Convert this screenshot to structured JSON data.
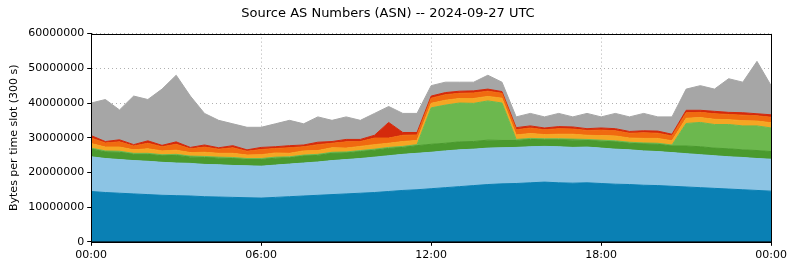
{
  "chart_data": {
    "type": "area",
    "title": "Source AS Numbers (ASN) -- 2024-09-27 UTC",
    "y_label": "Bytes per time slot (300 s)",
    "stacked": true,
    "grid": true,
    "xlim": [
      0,
      24
    ],
    "xticks": [
      {
        "value": 0,
        "label": "00:00"
      },
      {
        "value": 6,
        "label": "06:00"
      },
      {
        "value": 12,
        "label": "12:00"
      },
      {
        "value": 18,
        "label": "18:00"
      },
      {
        "value": 24,
        "label": "00:00"
      }
    ],
    "ylim": [
      0,
      60000000
    ],
    "yticks": [
      0,
      10000000,
      20000000,
      30000000,
      40000000,
      50000000,
      60000000
    ],
    "x": [
      0,
      0.5,
      1,
      1.5,
      2,
      2.5,
      3,
      3.5,
      4,
      4.5,
      5,
      5.5,
      6,
      6.5,
      7,
      7.5,
      8,
      8.5,
      9,
      9.5,
      10,
      10.5,
      11,
      11.5,
      12,
      12.5,
      13,
      13.5,
      14,
      14.5,
      15,
      15.5,
      16,
      16.5,
      17,
      17.5,
      18,
      18.5,
      19,
      19.5,
      20,
      20.5,
      21,
      21.5,
      22,
      22.5,
      23,
      23.5,
      24
    ],
    "series": [
      {
        "color": "#0a80b4",
        "values": [
          14500000,
          14200000,
          14000000,
          13800000,
          13600000,
          13400000,
          13300000,
          13200000,
          13000000,
          12900000,
          12800000,
          12700000,
          12600000,
          12800000,
          13000000,
          13200000,
          13400000,
          13600000,
          13800000,
          14000000,
          14200000,
          14500000,
          14800000,
          15000000,
          15300000,
          15600000,
          15900000,
          16200000,
          16500000,
          16700000,
          16800000,
          17000000,
          17200000,
          17000000,
          16900000,
          17000000,
          16800000,
          16600000,
          16500000,
          16300000,
          16200000,
          16000000,
          15800000,
          15600000,
          15400000,
          15200000,
          15000000,
          14800000,
          14600000
        ]
      },
      {
        "color": "#8cc4e4",
        "values": [
          10000000,
          9800000,
          9700000,
          9600000,
          9600000,
          9500000,
          9400000,
          9400000,
          9300000,
          9300000,
          9200000,
          9200000,
          9200000,
          9300000,
          9400000,
          9500000,
          9600000,
          9800000,
          9900000,
          10000000,
          10200000,
          10300000,
          10400000,
          10500000,
          10500000,
          10600000,
          10600000,
          10500000,
          10500000,
          10400000,
          10400000,
          10400000,
          10300000,
          10400000,
          10300000,
          10300000,
          10200000,
          10100000,
          10000000,
          9900000,
          9800000,
          9700000,
          9600000,
          9500000,
          9400000,
          9300000,
          9300000,
          9200000,
          9200000
        ]
      },
      {
        "color": "#4a9a2e",
        "values": [
          2200000,
          1900000,
          2100000,
          1800000,
          2000000,
          1900000,
          2200000,
          1800000,
          2000000,
          1900000,
          2000000,
          1800000,
          1900000,
          2000000,
          1800000,
          2000000,
          1900000,
          2100000,
          1900000,
          2000000,
          2000000,
          2100000,
          2000000,
          2200000,
          2300000,
          2200000,
          2300000,
          2200000,
          2300000,
          2100000,
          2000000,
          2100000,
          1900000,
          2000000,
          2100000,
          1900000,
          2000000,
          2100000,
          1900000,
          2000000,
          2100000,
          1900000,
          2200000,
          2300000,
          2200000,
          2300000,
          2200000,
          2300000,
          2200000
        ]
      },
      {
        "color": "#6cb84e",
        "values": [
          300000,
          300000,
          300000,
          300000,
          300000,
          300000,
          300000,
          300000,
          300000,
          300000,
          300000,
          300000,
          300000,
          300000,
          300000,
          300000,
          300000,
          300000,
          300000,
          300000,
          300000,
          300000,
          300000,
          300000,
          10500000,
          11000000,
          11200000,
          11000000,
          11300000,
          10800000,
          300000,
          300000,
          300000,
          300000,
          300000,
          300000,
          300000,
          300000,
          300000,
          300000,
          300000,
          300000,
          6500000,
          7000000,
          6800000,
          7000000,
          6900000,
          7100000,
          6800000
        ]
      },
      {
        "color": "#f5a623",
        "values": [
          1300000,
          1100000,
          1200000,
          1000000,
          1300000,
          1100000,
          1200000,
          1000000,
          1200000,
          1100000,
          1200000,
          1000000,
          1100000,
          1200000,
          1000000,
          1200000,
          1100000,
          1300000,
          1100000,
          1200000,
          1300000,
          1200000,
          1400000,
          1200000,
          1300000,
          1400000,
          1300000,
          1400000,
          1300000,
          1400000,
          1300000,
          1400000,
          1200000,
          1300000,
          1400000,
          1200000,
          1300000,
          1400000,
          1200000,
          1300000,
          1400000,
          1200000,
          1500000,
          1400000,
          1500000,
          1400000,
          1500000,
          1400000,
          1500000
        ]
      },
      {
        "color": "#f06a10",
        "values": [
          1600000,
          1200000,
          1500000,
          1100000,
          1600000,
          1200000,
          1700000,
          1100000,
          1500000,
          1200000,
          1600000,
          1100000,
          1500000,
          1300000,
          1600000,
          1200000,
          1700000,
          1300000,
          1800000,
          1400000,
          1900000,
          1500000,
          1800000,
          1600000,
          1500000,
          1600000,
          1500000,
          1600000,
          1500000,
          1400000,
          1500000,
          1600000,
          1400000,
          1600000,
          1500000,
          1400000,
          1600000,
          1500000,
          1400000,
          1600000,
          1500000,
          1400000,
          1600000,
          1500000,
          1600000,
          1500000,
          1600000,
          1500000,
          1600000
        ]
      },
      {
        "color": "#d42a0c",
        "values": [
          700000,
          400000,
          600000,
          400000,
          700000,
          400000,
          700000,
          400000,
          600000,
          400000,
          600000,
          400000,
          600000,
          500000,
          600000,
          500000,
          700000,
          500000,
          700000,
          600000,
          800000,
          4500000,
          800000,
          700000,
          600000,
          600000,
          600000,
          600000,
          600000,
          500000,
          600000,
          600000,
          500000,
          600000,
          600000,
          500000,
          600000,
          600000,
          500000,
          600000,
          600000,
          500000,
          700000,
          600000,
          700000,
          600000,
          700000,
          600000,
          700000
        ]
      },
      {
        "color": "#a6a6a6",
        "values": [
          9400000,
          12100000,
          8600000,
          14000000,
          11900000,
          16200000,
          19200000,
          14800000,
          9100000,
          7900000,
          6300000,
          6500000,
          5800000,
          6600000,
          7300000,
          6100000,
          7300000,
          6100000,
          6500000,
          5500000,
          6300000,
          4600000,
          5500000,
          5500000,
          3000000,
          3000000,
          2600000,
          2500000,
          4000000,
          2700000,
          3100000,
          3600000,
          3200000,
          3800000,
          2900000,
          4400000,
          3200000,
          4400000,
          4200000,
          5000000,
          4100000,
          5000000,
          6100000,
          7100000,
          6400000,
          9700000,
          8800000,
          15100000,
          8400000
        ]
      }
    ]
  }
}
